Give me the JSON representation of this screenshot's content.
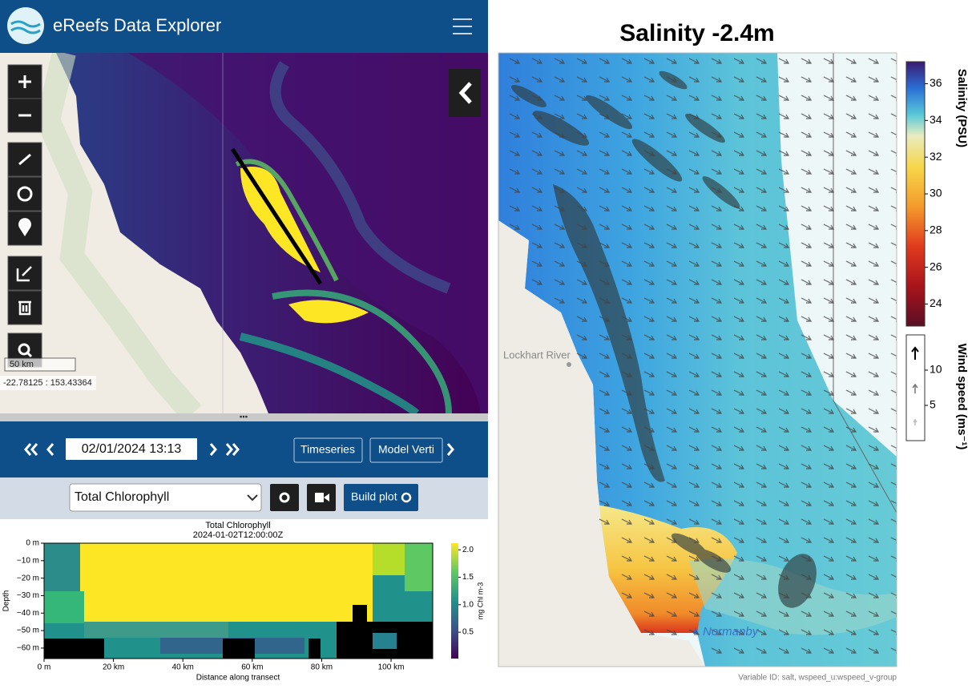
{
  "header": {
    "title": "eReefs Data Explorer"
  },
  "map": {
    "scale": "50 km",
    "coordinates": "-22.78125 : 153.43364"
  },
  "time_bar": {
    "date": "02/01/2024 13:13",
    "buttons": [
      "Timeseries",
      "Model Verti"
    ]
  },
  "plot_controls": {
    "variable": "Total Chlorophyll",
    "build_button": "Build plot"
  },
  "transect_plot": {
    "title": "Total Chlorophyll",
    "subtitle": "2024-01-02T12:00:00Z",
    "ylabel": "Depth",
    "xlabel": "Distance along transect",
    "colorbar_label": "mg Chl m-3",
    "ylim": [
      -66,
      0
    ],
    "yticks": [
      {
        "value": 0,
        "label": "0 m"
      },
      {
        "value": -10,
        "label": "−10 m"
      },
      {
        "value": -20,
        "label": "−20 m"
      },
      {
        "value": -30,
        "label": "−30 m"
      },
      {
        "value": -40,
        "label": "−40 m"
      },
      {
        "value": -50,
        "label": "−50 m"
      },
      {
        "value": -60,
        "label": "−60 m"
      }
    ],
    "xlim": [
      0,
      112
    ],
    "xticks": [
      {
        "value": 0,
        "label": "0 m"
      },
      {
        "value": 20,
        "label": "20 km"
      },
      {
        "value": 40,
        "label": "40 km"
      },
      {
        "value": 60,
        "label": "60 km"
      },
      {
        "value": 80,
        "label": "80 km"
      },
      {
        "value": 100,
        "label": "100 km"
      }
    ],
    "clim": [
      0.02,
      2.12
    ],
    "cticks": [
      {
        "value": 0.5,
        "label": "0.5"
      },
      {
        "value": 1,
        "label": "1.0"
      },
      {
        "value": 1.5,
        "label": "1.5"
      },
      {
        "value": 2,
        "label": "2.0"
      }
    ]
  },
  "salinity_map": {
    "title": "Salinity -2.4m",
    "colorbar_label": "Salinity (PSU)",
    "clim": [
      22.8,
      37.2
    ],
    "cticks": [
      24,
      26,
      28,
      30,
      32,
      34,
      36
    ],
    "wind_label": "Wind speed (ms⁻¹)",
    "wind_lim": [
      0,
      15
    ],
    "wind_ticks": [
      5,
      10
    ],
    "places": [
      "Lockhart River",
      "Normanby"
    ],
    "footer": "Variable ID: salt, wspeed_u:wspeed_v-group"
  }
}
